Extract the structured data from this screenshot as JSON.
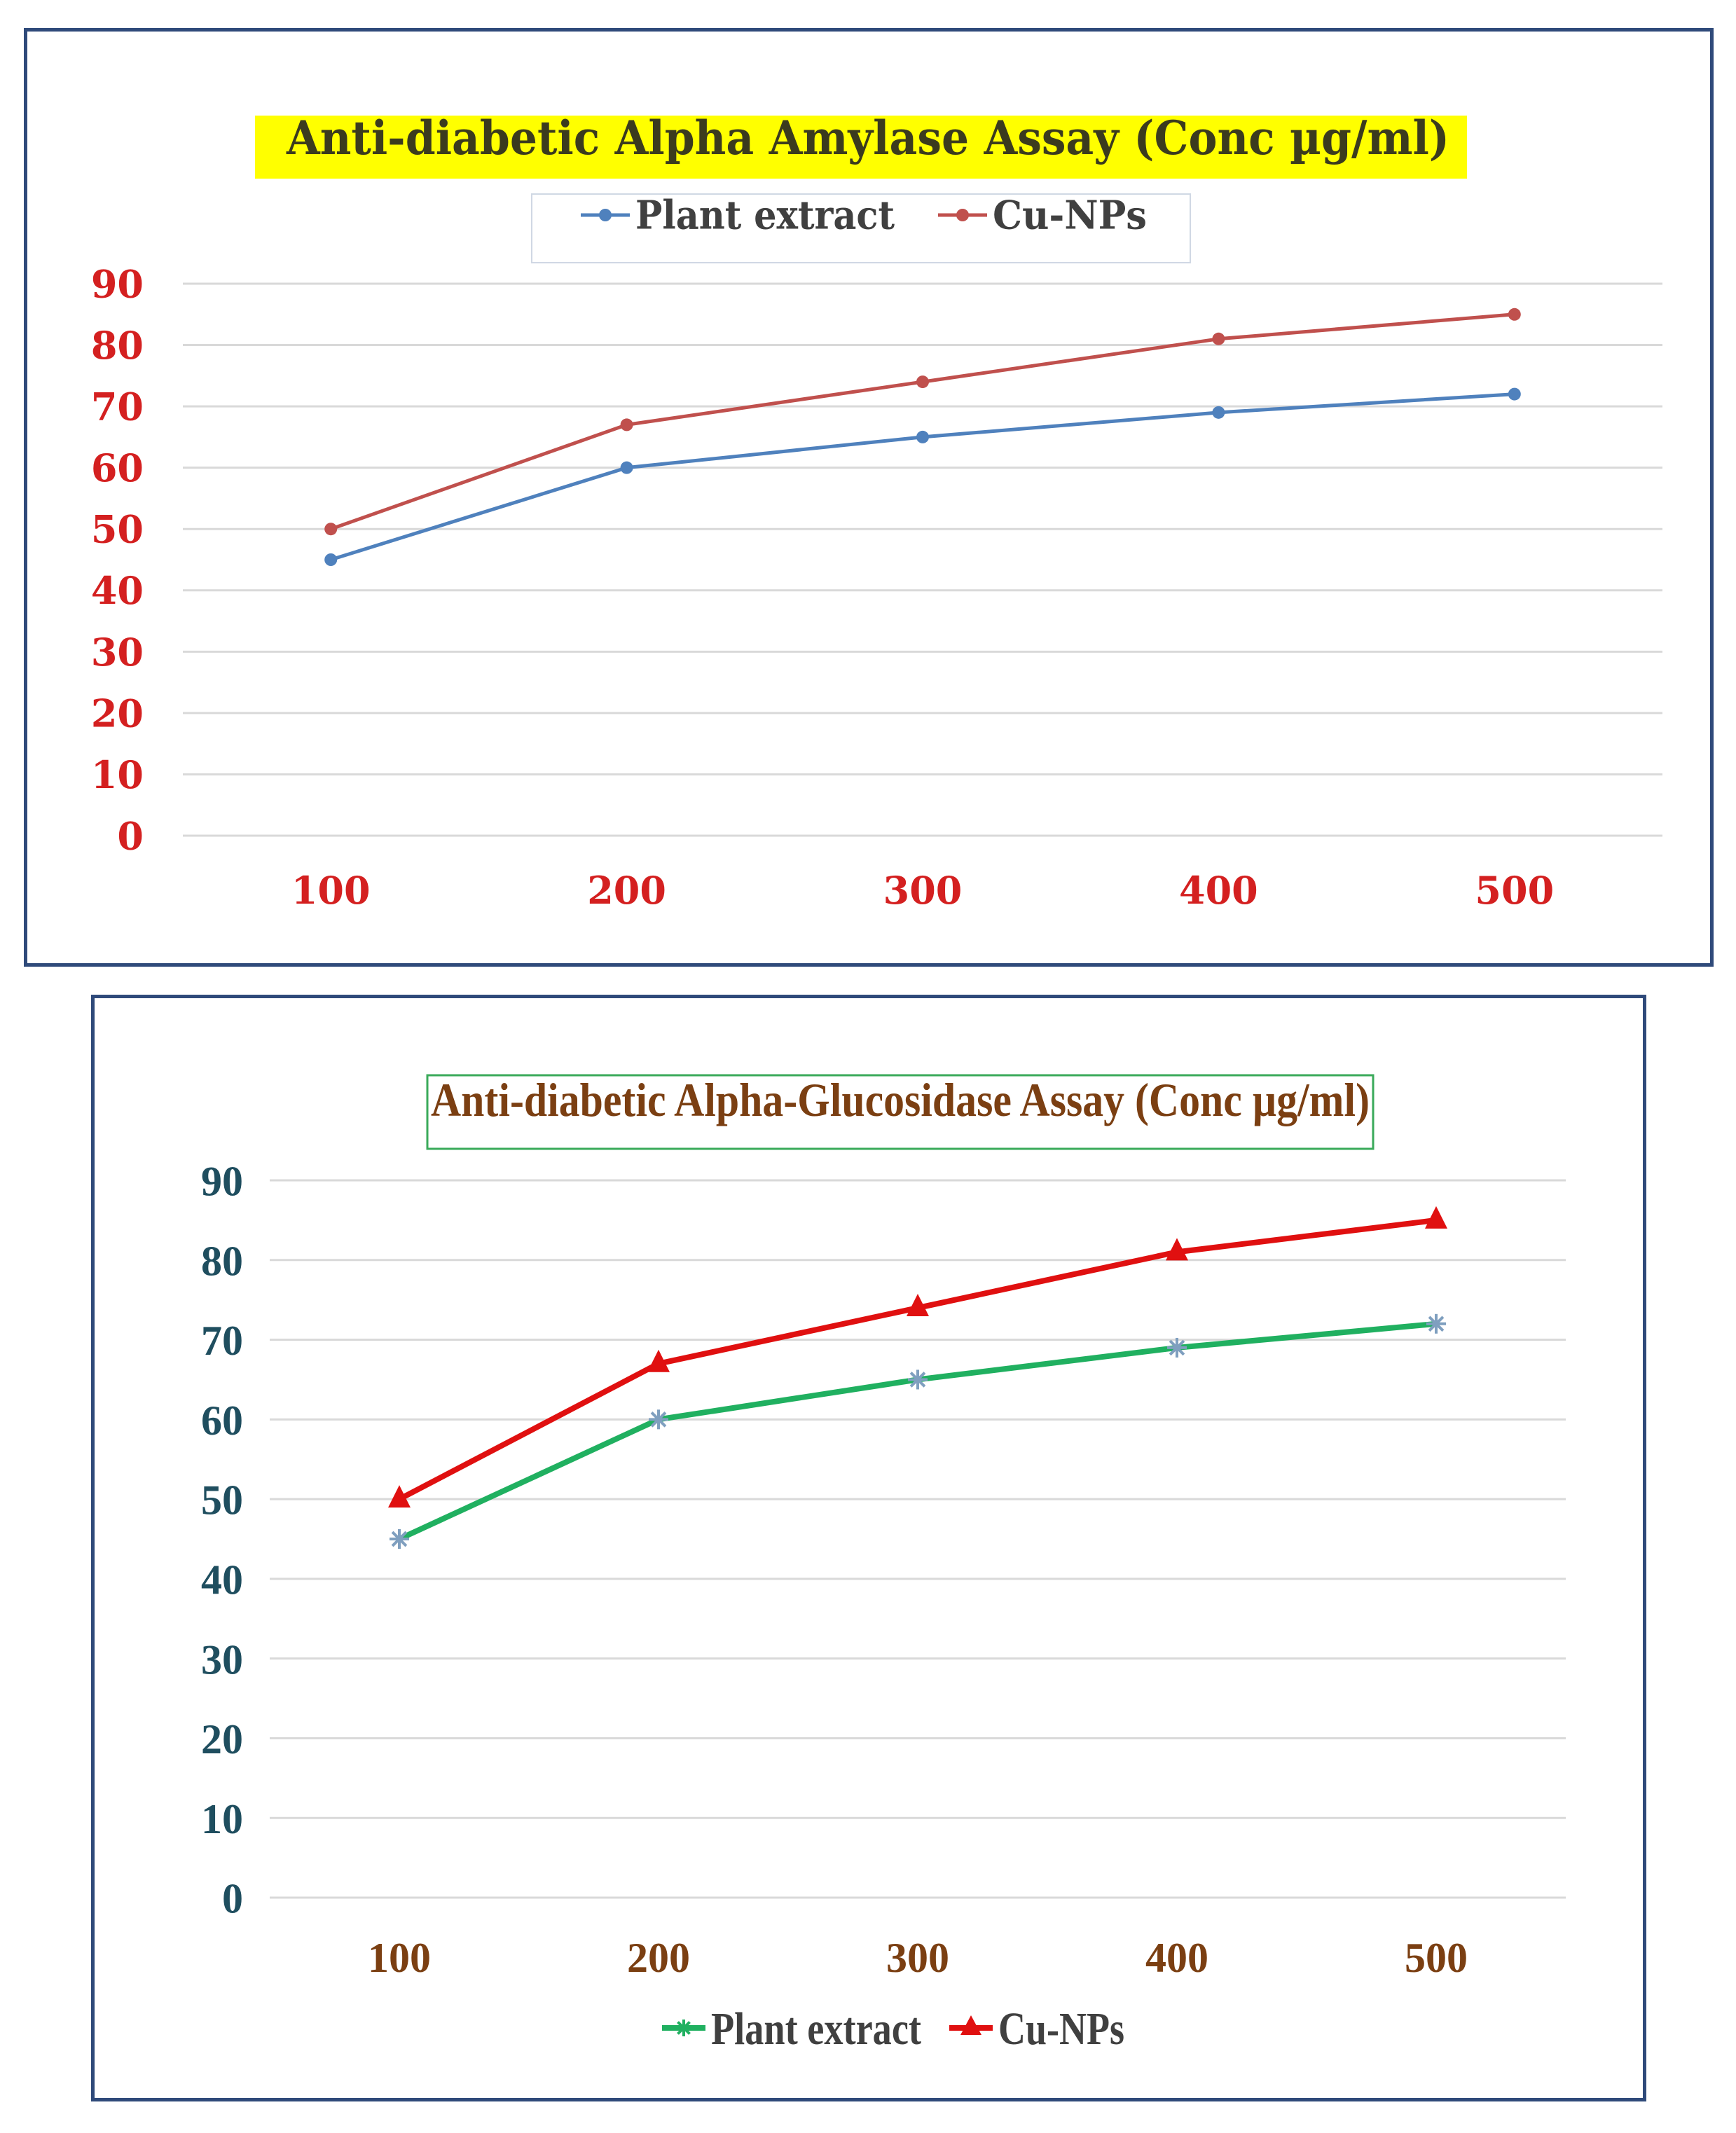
{
  "chart_data": [
    {
      "type": "line",
      "title": "Anti-diabetic Alpha Amylase Assay (Conc µg/ml)",
      "categories": [
        "100",
        "200",
        "300",
        "400",
        "500"
      ],
      "series": [
        {
          "name": "Plant extract",
          "values": [
            45,
            60,
            65,
            69,
            72
          ],
          "color": "#4f81bd",
          "marker": "circle"
        },
        {
          "name": "Cu-NPs",
          "values": [
            50,
            67,
            74,
            81,
            85
          ],
          "color": "#c0504d",
          "marker": "circle"
        }
      ],
      "yticks": [
        "90",
        "80",
        "70",
        "60",
        "50",
        "40",
        "30",
        "20",
        "10",
        "0"
      ],
      "ylim": [
        0,
        90
      ],
      "grid": true,
      "legend": "top",
      "title_highlight": "#ffff00",
      "title_color": "#3b3b1e",
      "tick_color": "#d42020",
      "legend_text_color": "#404040"
    },
    {
      "type": "line",
      "title": "Anti-diabetic Alpha-Glucosidase Assay (Conc µg/ml)",
      "categories": [
        "100",
        "200",
        "300",
        "400",
        "500"
      ],
      "series": [
        {
          "name": "Plant extract",
          "values": [
            45,
            60,
            65,
            69,
            72
          ],
          "color": "#20b060",
          "marker": "star"
        },
        {
          "name": "Cu-NPs",
          "values": [
            50,
            67,
            74,
            81,
            85
          ],
          "color": "#e01010",
          "marker": "triangle"
        }
      ],
      "yticks": [
        "90",
        "80",
        "70",
        "60",
        "50",
        "40",
        "30",
        "20",
        "10",
        "0"
      ],
      "ylim": [
        0,
        90
      ],
      "grid": true,
      "legend": "bottom",
      "title_border": "#3aaa5a",
      "title_color": "#7b3f12",
      "ytick_color": "#1f4e5f",
      "xtick_color": "#7b3f12",
      "legend_text_color": "#404040"
    }
  ]
}
